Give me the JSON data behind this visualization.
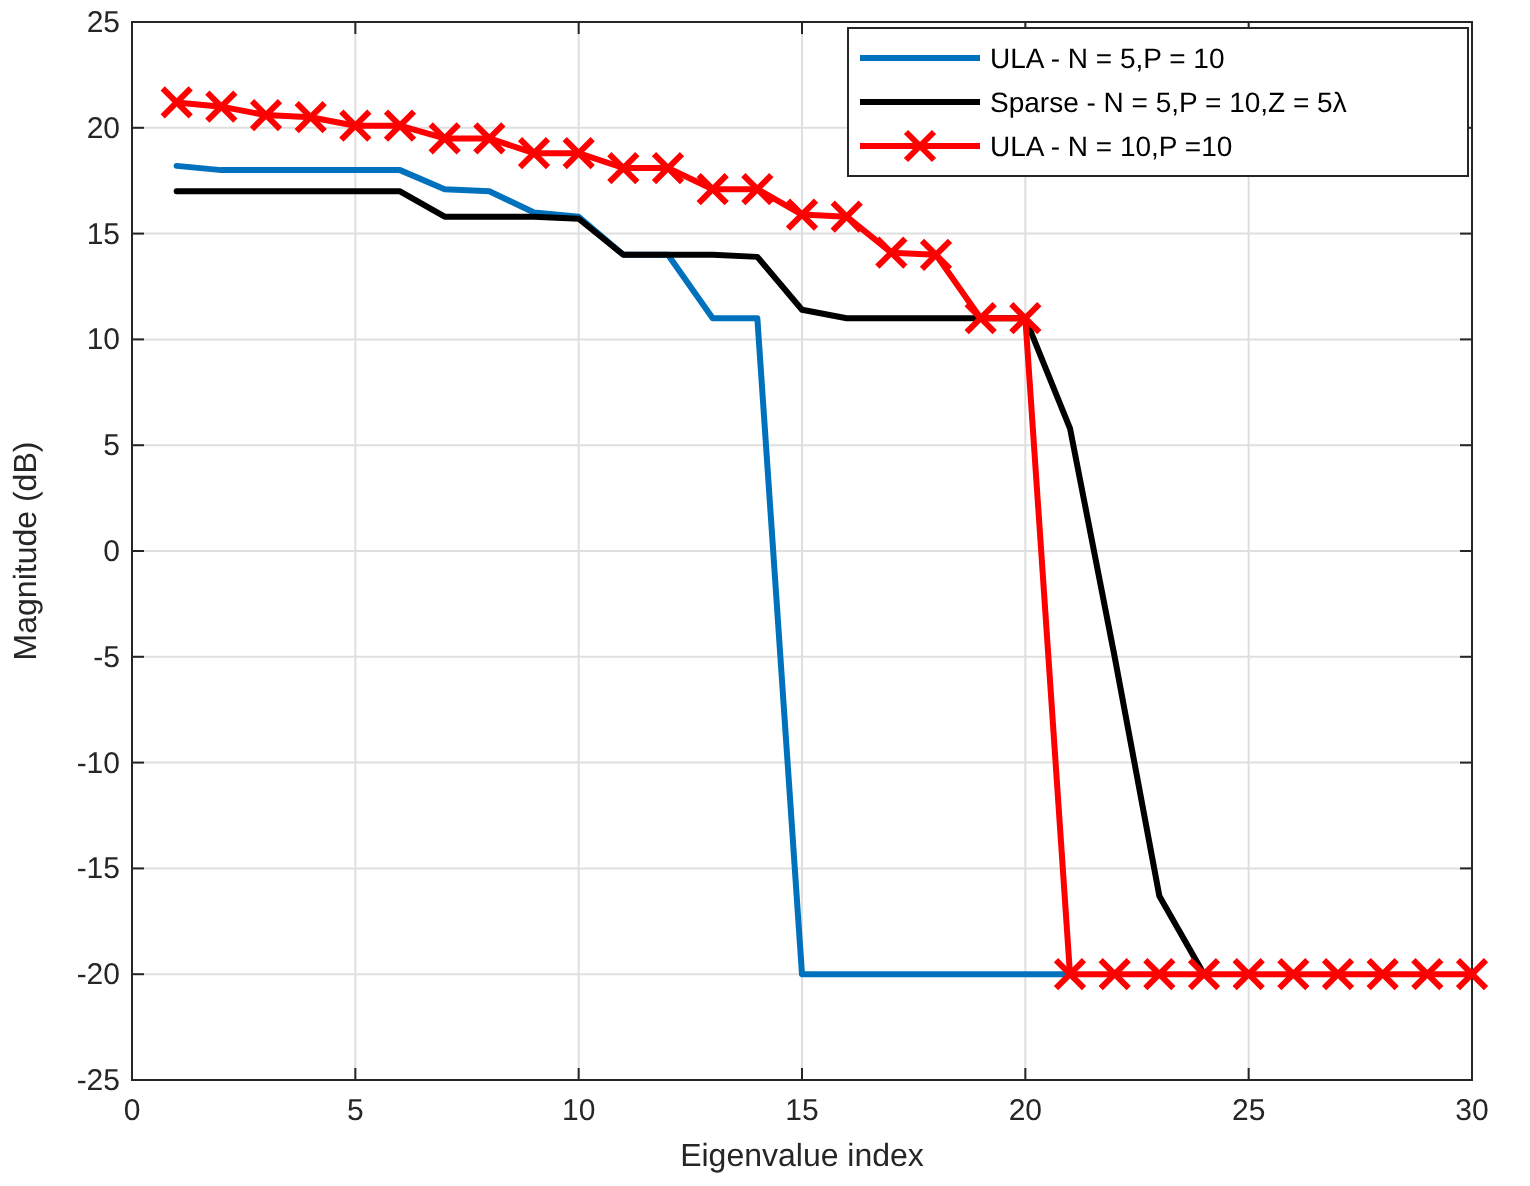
{
  "chart_data": {
    "type": "line",
    "xlabel": "Eigenvalue index",
    "ylabel": "Magnitude (dB)",
    "xlim": [
      0,
      30
    ],
    "xticks": [
      0,
      5,
      10,
      15,
      20,
      25,
      30
    ],
    "ylim": [
      -25,
      25
    ],
    "yticks": [
      -25,
      -20,
      -15,
      -10,
      -5,
      0,
      5,
      10,
      15,
      20,
      25
    ],
    "grid": true,
    "legend": "top right",
    "series": [
      {
        "name": "ULA - N = 5,P = 10",
        "color": "#0072bd",
        "marker": "none",
        "x": [
          1,
          2,
          3,
          4,
          5,
          6,
          7,
          8,
          9,
          10,
          11,
          12,
          13,
          14,
          15,
          16,
          17,
          18,
          19,
          20,
          21
        ],
        "values": [
          18.2,
          18,
          18,
          18,
          18,
          18,
          17.1,
          17,
          16,
          15.8,
          14,
          14,
          11,
          11,
          -20,
          -20,
          -20,
          -20,
          -20,
          -20,
          -20
        ]
      },
      {
        "name": "Sparse - N = 5,P = 10,Z = 5λ",
        "color": "#000000",
        "marker": "none",
        "x": [
          1,
          2,
          3,
          4,
          5,
          6,
          7,
          8,
          9,
          10,
          11,
          12,
          13,
          14,
          15,
          16,
          17,
          18,
          19,
          20,
          21,
          22,
          23,
          24
        ],
        "values": [
          17,
          17,
          17,
          17,
          17,
          17,
          15.8,
          15.8,
          15.8,
          15.7,
          14,
          14,
          14,
          13.9,
          11.4,
          11,
          11,
          11,
          11,
          11,
          5.8,
          -5,
          -16.3,
          -20
        ]
      },
      {
        "name": "ULA - N = 10,P =10",
        "color": "#ff0000",
        "marker": "cross",
        "x": [
          1,
          2,
          3,
          4,
          5,
          6,
          7,
          8,
          9,
          10,
          11,
          12,
          13,
          14,
          15,
          16,
          17,
          18,
          19,
          20,
          21,
          22,
          23,
          24,
          25,
          26,
          27,
          28,
          29,
          30
        ],
        "values": [
          21.2,
          21,
          20.6,
          20.5,
          20.1,
          20.1,
          19.5,
          19.5,
          18.8,
          18.8,
          18.1,
          18.1,
          17.1,
          17.1,
          15.9,
          15.8,
          14.1,
          14,
          11,
          11,
          -20,
          -20,
          -20,
          -20,
          -20,
          -20,
          -20,
          -20,
          -20,
          -20
        ]
      }
    ]
  }
}
